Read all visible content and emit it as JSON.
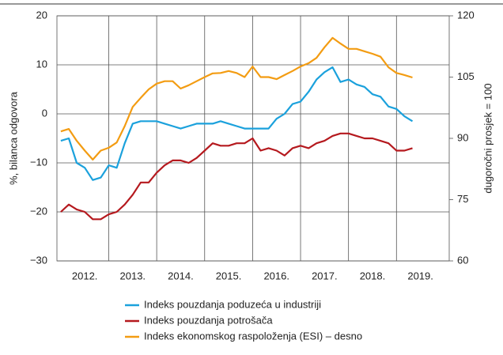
{
  "chart_data": {
    "type": "line",
    "y_label": "%, bilanca odgovora",
    "y2_label": "dugoročni prosjek = 100",
    "x": [
      2012.0,
      2012.167,
      2012.333,
      2012.5,
      2012.667,
      2012.833,
      2013.0,
      2013.167,
      2013.333,
      2013.5,
      2013.667,
      2013.833,
      2014.0,
      2014.167,
      2014.333,
      2014.5,
      2014.667,
      2014.833,
      2015.0,
      2015.167,
      2015.333,
      2015.5,
      2015.667,
      2015.833,
      2016.0,
      2016.167,
      2016.333,
      2016.5,
      2016.667,
      2016.833,
      2017.0,
      2017.167,
      2017.333,
      2017.5,
      2017.667,
      2017.833,
      2018.0,
      2018.167,
      2018.333,
      2018.5,
      2018.667,
      2018.833,
      2019.0,
      2019.167,
      2019.333
    ],
    "series": [
      {
        "name": "Indeks pouzdanja poduzeća u industriji",
        "color": "#1ba1dc",
        "values": [
          -5.5,
          -5,
          -10,
          -11,
          -13.5,
          -13,
          -10.5,
          -11,
          -6,
          -2,
          -1.5,
          -1.5,
          -1.5,
          -2,
          -2.5,
          -3,
          -2.5,
          -2,
          -2,
          -2,
          -1.5,
          -2,
          -2.5,
          -3,
          -3,
          -3,
          -3,
          -1,
          0,
          2,
          2.5,
          4.5,
          7,
          8.5,
          9.5,
          6.5,
          7,
          6,
          5.5,
          4,
          3.5,
          1.5,
          1,
          -0.5,
          -1.5
        ]
      },
      {
        "name": "Indeks pouzdanja potrošača",
        "color": "#b5191e",
        "values": [
          -20,
          -18.5,
          -19.5,
          -20,
          -21.5,
          -21.5,
          -20.5,
          -20,
          -18.5,
          -16.5,
          -14,
          -14,
          -12,
          -10.5,
          -9.5,
          -9.5,
          -10,
          -9,
          -7.5,
          -6,
          -6.5,
          -6.5,
          -6,
          -6,
          -5,
          -7.5,
          -7,
          -7.5,
          -8.5,
          -7,
          -6.5,
          -7,
          -6,
          -5.5,
          -4.5,
          -4,
          -4,
          -4.5,
          -5,
          -5,
          -5.5,
          -6,
          -7.5,
          -7.5,
          -7
        ]
      },
      {
        "name": "Indeks ekonomskog raspoloženja (ESI) – desno",
        "color": "#f39c12",
        "axis": "y2",
        "values": [
          91.7,
          92.3,
          89.4,
          87,
          84.8,
          87,
          87.7,
          89,
          93,
          97.7,
          99.9,
          102,
          103.4,
          104,
          104,
          102.2,
          103,
          104,
          105,
          105.9,
          106,
          106.5,
          106,
          105,
          107.6,
          105,
          105,
          104.5,
          105.5,
          106.5,
          107.6,
          108.4,
          109.7,
          112.3,
          114.6,
          113.2,
          111.9,
          111.9,
          111.3,
          110.7,
          110,
          107.4,
          106,
          105.5,
          104.9
        ]
      }
    ],
    "xlim": [
      2011.92,
      2020.1
    ],
    "xticks": [
      {
        "value": 2012.5,
        "label": "2012."
      },
      {
        "value": 2013.5,
        "label": "2013."
      },
      {
        "value": 2014.5,
        "label": "2014."
      },
      {
        "value": 2015.5,
        "label": "2015."
      },
      {
        "value": 2016.5,
        "label": "2016."
      },
      {
        "value": 2017.5,
        "label": "2017."
      },
      {
        "value": 2018.5,
        "label": "2018."
      },
      {
        "value": 2019.5,
        "label": "2019."
      }
    ],
    "xgrid": [
      2013,
      2014,
      2015,
      2016,
      2017,
      2018,
      2019
    ],
    "ylim": [
      -30,
      20
    ],
    "yticks": [
      {
        "value": -30,
        "label": "−30"
      },
      {
        "value": -20,
        "label": "−20"
      },
      {
        "value": -10,
        "label": "−10"
      },
      0,
      10,
      20
    ],
    "y2lim": [
      60,
      120
    ],
    "y2ticks": [
      60,
      75,
      90,
      105,
      120
    ],
    "grid": true
  }
}
